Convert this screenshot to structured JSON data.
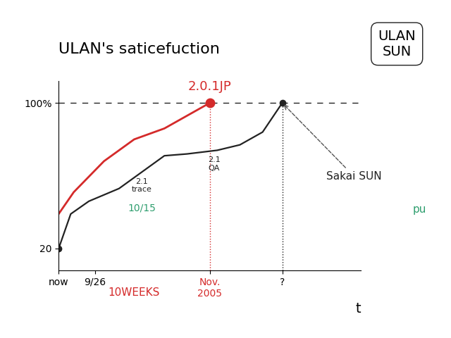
{
  "chart_data": {
    "type": "line",
    "title": "ULAN's saticefuction",
    "x_label": "t",
    "xlim": [
      0,
      20
    ],
    "xticks": [
      {
        "value": 0,
        "label": "now"
      },
      {
        "value": 2.4,
        "label": "9/26"
      },
      {
        "value": 10,
        "label": "Nov.\n2005"
      },
      {
        "value": 14.8,
        "label": "?"
      }
    ],
    "ylim": [
      8,
      112
    ],
    "yticks": [
      20,
      {
        "value": 100,
        "label": "100%"
      }
    ],
    "target": 100,
    "series": [
      {
        "name": "2.0.1JP",
        "color": "#d42a2a",
        "x": [
          0,
          1,
          3,
          5,
          7,
          8.5,
          10
        ],
        "values": [
          39,
          51,
          68,
          80,
          86,
          93,
          100
        ]
      },
      {
        "name": "Sakai SUN",
        "color": "#222222",
        "x": [
          0,
          0.8,
          2,
          4,
          5.5,
          7,
          8.5,
          10.5,
          12,
          13.5,
          14.8
        ],
        "values": [
          20,
          39,
          46,
          53,
          62,
          71,
          72,
          74,
          77,
          84,
          100
        ]
      }
    ],
    "milestones": [
      {
        "text": "2.1\ntrace",
        "date": "10/15",
        "x": 5.5
      },
      {
        "text": "2.1\nQA",
        "x": 10.3
      }
    ],
    "span_label": "10WEEKS",
    "box_label": "ULAN\nSUN",
    "side_note": "pu"
  }
}
